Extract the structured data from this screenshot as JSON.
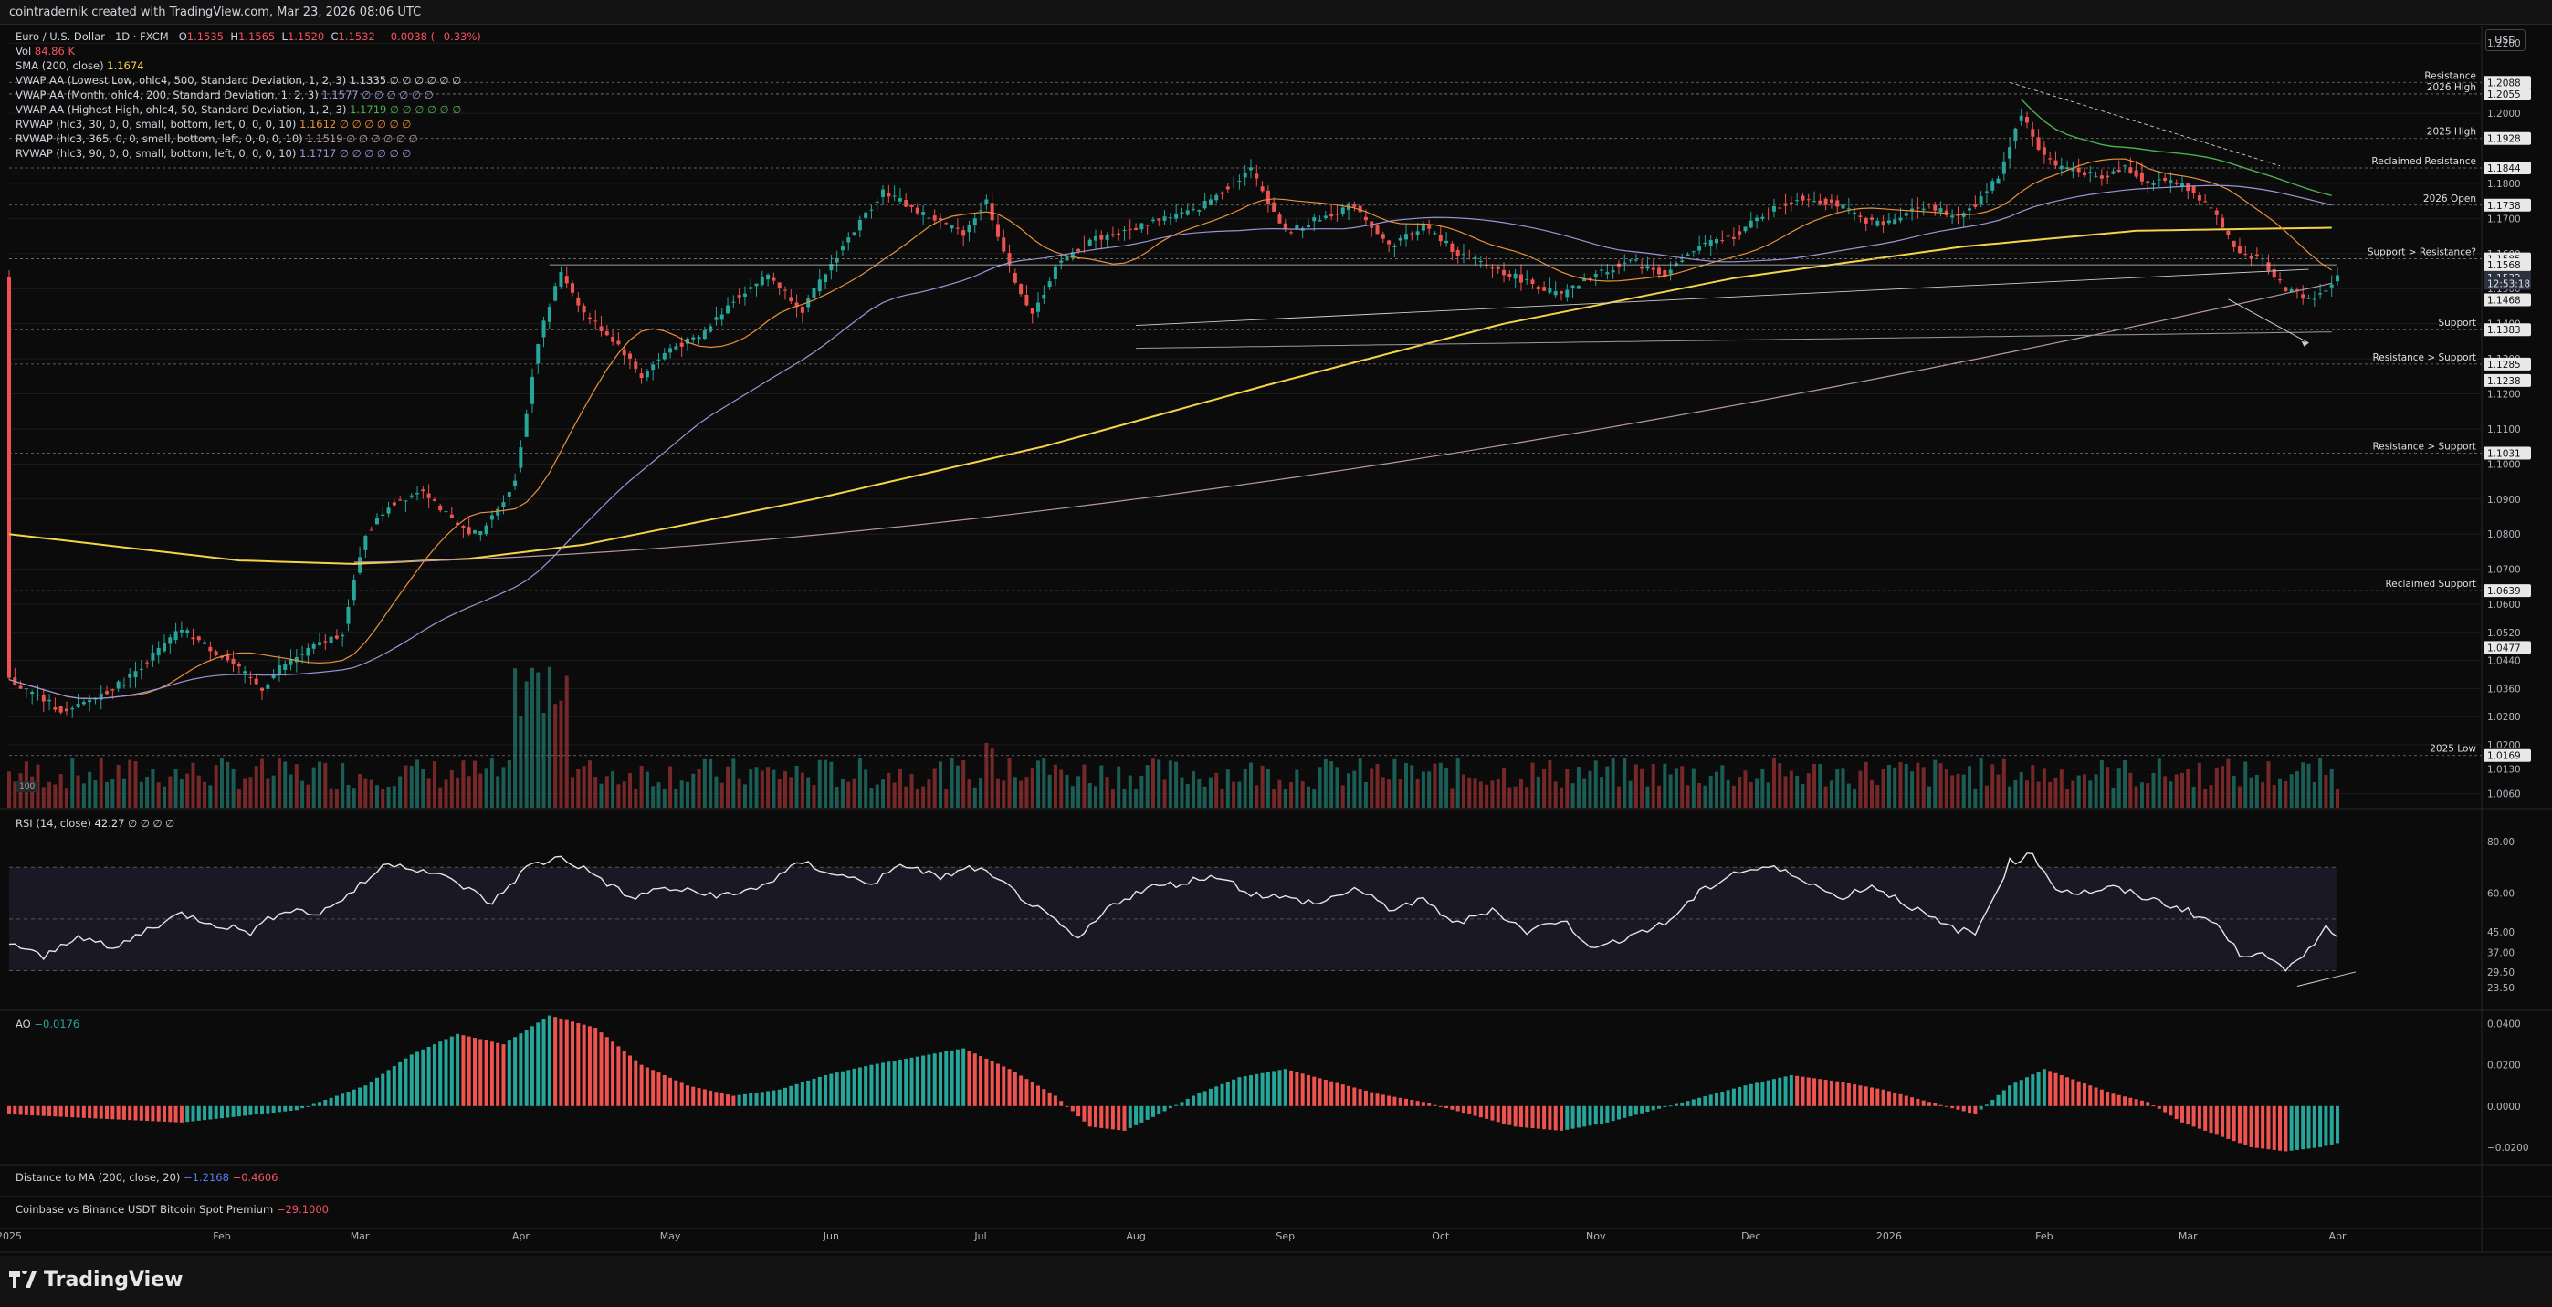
{
  "header": {
    "title": "cointradernik created with TradingView.com, Mar 23, 2026 08:06 UTC"
  },
  "legend": {
    "symbol": "Euro / U.S. Dollar · 1D · FXCM",
    "open_label": "O",
    "open": "1.1535",
    "high_label": "H",
    "high": "1.1565",
    "low_label": "L",
    "low": "1.1520",
    "close_label": "C",
    "close": "1.1532",
    "change": "−0.0038 (−0.33%)",
    "vol_label": "Vol",
    "vol": "84.86 K",
    "sma_label": "SMA (200, close)",
    "sma": "1.1674",
    "vwap1_label": "VWAP AA (Lowest Low, ohlc4, 500, Standard Deviation, 1, 2, 3)",
    "vwap1": "1.1335 ∅ ∅ ∅ ∅ ∅ ∅",
    "vwap2_label": "VWAP AA (Month, ohlc4, 200, Standard Deviation, 1, 2, 3)",
    "vwap2": "1.1577 ∅ ∅ ∅ ∅ ∅ ∅",
    "vwap3_label": "VWAP AA (Highest High, ohlc4, 50, Standard Deviation, 1, 2, 3)",
    "vwap3": "1.1719 ∅ ∅ ∅ ∅ ∅ ∅",
    "rvwap1_label": "RVWAP (hlc3, 30, 0, 0, small, bottom, left, 0, 0, 0, 10)",
    "rvwap1": "1.1612 ∅ ∅ ∅ ∅ ∅ ∅",
    "rvwap2_label": "RVWAP (hlc3, 365, 0, 0, small, bottom, left, 0, 0, 0, 10)",
    "rvwap2": "1.1519 ∅ ∅ ∅ ∅ ∅ ∅",
    "rvwap3_label": "RVWAP (hlc3, 90, 0, 0, small, bottom, left, 0, 0, 0, 10)",
    "rvwap3": "1.1717 ∅ ∅ ∅ ∅ ∅ ∅"
  },
  "currency": "USD",
  "vol_badge": "100",
  "panes": {
    "rsi_label": "RSI (14, close)",
    "rsi_value": "42.27",
    "rsi_extra": "∅ ∅ ∅ ∅",
    "ao_label": "AO",
    "ao_value": "−0.0176",
    "dist_label": "Distance to MA (200, close, 20)",
    "dist_v1": "−1.2168",
    "dist_v2": "−0.4606",
    "prem_label": "Coinbase vs Binance USDT Bitcoin Spot Premium",
    "prem_value": "−29.1000"
  },
  "footer": {
    "brand": "TradingView"
  },
  "colors": {
    "up": "#26a69a",
    "down": "#ef5350",
    "sma": "#f5d547",
    "orange": "#e8903a",
    "lavender": "#9c97d8",
    "pink": "#b798a8",
    "green": "#4caf50",
    "grid": "#1c1c1c"
  },
  "chart_data": {
    "type": "candlestick",
    "symbol": "EURUSD",
    "timeframe": "1D",
    "x_axis_labels": [
      "2025",
      "Feb",
      "Mar",
      "Apr",
      "May",
      "Jun",
      "Jul",
      "Aug",
      "Sep",
      "Oct",
      "Nov",
      "Dec",
      "2026",
      "Feb",
      "Mar",
      "Apr"
    ],
    "price_ticks": [
      "1.2200",
      "1.2000",
      "1.1800",
      "1.1700",
      "1.1600",
      "1.1500",
      "1.1400",
      "1.1300",
      "1.1200",
      "1.1100",
      "1.1000",
      "1.0900",
      "1.0800",
      "1.0700",
      "1.0600",
      "1.0520",
      "1.0440",
      "1.0360",
      "1.0280",
      "1.0200",
      "1.0130",
      "1.0060"
    ],
    "price_axis_marks": [
      "1.2088",
      "1.2055",
      "1.1928",
      "1.1844",
      "1.1738",
      "1.1585",
      "1.1568",
      "1.1532",
      "12:53:18",
      "1.1468",
      "1.1383",
      "1.1285",
      "1.1238",
      "1.1031",
      "1.0639",
      "1.0477",
      "1.0169"
    ],
    "levels": [
      {
        "label": "Resistance",
        "price": 1.2088
      },
      {
        "label": "2026 High",
        "price": 1.2055
      },
      {
        "label": "2025 High",
        "price": 1.1928
      },
      {
        "label": "Reclaimed Resistance",
        "price": 1.1844
      },
      {
        "label": "2026 Open",
        "price": 1.1738
      },
      {
        "label": "Support > Resistance?",
        "price": 1.1585
      },
      {
        "label": "Support",
        "price": 1.1383
      },
      {
        "label": "Resistance > Support",
        "price": 1.1285
      },
      {
        "label": "Resistance > Support",
        "price": 1.1031
      },
      {
        "label": "Reclaimed Support",
        "price": 1.0639
      },
      {
        "label": "2025 Low",
        "price": 1.0169
      }
    ],
    "rsi_ticks": [
      "80.00",
      "60.00",
      "45.00",
      "37.00",
      "29.50",
      "23.50"
    ],
    "ao_ticks": [
      "0.0400",
      "0.0200",
      "0.0000",
      "−0.0200"
    ],
    "close_path": [
      [
        0,
        1.0385
      ],
      [
        10,
        1.029
      ],
      [
        20,
        1.038
      ],
      [
        30,
        1.053
      ],
      [
        38,
        1.044
      ],
      [
        44,
        1.036
      ],
      [
        47,
        1.042
      ],
      [
        52,
        1.047
      ],
      [
        58,
        1.052
      ],
      [
        62,
        1.08
      ],
      [
        66,
        1.088
      ],
      [
        72,
        1.093
      ],
      [
        78,
        1.082
      ],
      [
        82,
        1.08
      ],
      [
        88,
        1.095
      ],
      [
        92,
        1.135
      ],
      [
        96,
        1.155
      ],
      [
        100,
        1.143
      ],
      [
        106,
        1.134
      ],
      [
        110,
        1.125
      ],
      [
        115,
        1.133
      ],
      [
        120,
        1.136
      ],
      [
        126,
        1.147
      ],
      [
        132,
        1.154
      ],
      [
        138,
        1.144
      ],
      [
        145,
        1.162
      ],
      [
        152,
        1.178
      ],
      [
        158,
        1.172
      ],
      [
        166,
        1.166
      ],
      [
        170,
        1.175
      ],
      [
        174,
        1.156
      ],
      [
        178,
        1.142
      ],
      [
        182,
        1.156
      ],
      [
        188,
        1.164
      ],
      [
        194,
        1.166
      ],
      [
        200,
        1.17
      ],
      [
        206,
        1.172
      ],
      [
        212,
        1.179
      ],
      [
        216,
        1.184
      ],
      [
        222,
        1.166
      ],
      [
        228,
        1.17
      ],
      [
        234,
        1.174
      ],
      [
        240,
        1.162
      ],
      [
        246,
        1.168
      ],
      [
        252,
        1.16
      ],
      [
        258,
        1.156
      ],
      [
        264,
        1.152
      ],
      [
        270,
        1.148
      ],
      [
        276,
        1.154
      ],
      [
        282,
        1.158
      ],
      [
        288,
        1.154
      ],
      [
        294,
        1.162
      ],
      [
        300,
        1.165
      ],
      [
        306,
        1.172
      ],
      [
        312,
        1.176
      ],
      [
        318,
        1.174
      ],
      [
        322,
        1.17
      ],
      [
        326,
        1.168
      ],
      [
        330,
        1.172
      ],
      [
        334,
        1.174
      ],
      [
        338,
        1.17
      ],
      [
        342,
        1.174
      ],
      [
        346,
        1.182
      ],
      [
        350,
        1.2
      ],
      [
        353,
        1.19
      ],
      [
        356,
        1.185
      ],
      [
        360,
        1.184
      ],
      [
        364,
        1.181
      ],
      [
        368,
        1.185
      ],
      [
        372,
        1.18
      ],
      [
        376,
        1.181
      ],
      [
        380,
        1.178
      ],
      [
        384,
        1.17
      ],
      [
        388,
        1.16
      ],
      [
        392,
        1.158
      ],
      [
        396,
        1.15
      ],
      [
        400,
        1.147
      ],
      [
        402,
        1.148
      ],
      [
        405,
        1.1532
      ]
    ],
    "sma200_path": [
      [
        0,
        1.08
      ],
      [
        40,
        1.0725
      ],
      [
        60,
        1.0715
      ],
      [
        80,
        1.073
      ],
      [
        100,
        1.077
      ],
      [
        140,
        1.09
      ],
      [
        180,
        1.105
      ],
      [
        220,
        1.123
      ],
      [
        260,
        1.14
      ],
      [
        300,
        1.153
      ],
      [
        340,
        1.162
      ],
      [
        370,
        1.1665
      ],
      [
        405,
        1.1674
      ]
    ],
    "rsi_path": [
      [
        0,
        41
      ],
      [
        6,
        35
      ],
      [
        12,
        44
      ],
      [
        18,
        38
      ],
      [
        24,
        46
      ],
      [
        30,
        52
      ],
      [
        36,
        48
      ],
      [
        42,
        45
      ],
      [
        48,
        54
      ],
      [
        54,
        52
      ],
      [
        60,
        61
      ],
      [
        66,
        72
      ],
      [
        72,
        69
      ],
      [
        78,
        64
      ],
      [
        84,
        56
      ],
      [
        90,
        70
      ],
      [
        96,
        74
      ],
      [
        102,
        67
      ],
      [
        108,
        58
      ],
      [
        114,
        62
      ],
      [
        120,
        60
      ],
      [
        126,
        59
      ],
      [
        132,
        64
      ],
      [
        138,
        72
      ],
      [
        144,
        67
      ],
      [
        150,
        64
      ],
      [
        156,
        71
      ],
      [
        162,
        66
      ],
      [
        168,
        70
      ],
      [
        174,
        62
      ],
      [
        180,
        52
      ],
      [
        186,
        42
      ],
      [
        192,
        56
      ],
      [
        198,
        62
      ],
      [
        204,
        64
      ],
      [
        210,
        67
      ],
      [
        216,
        60
      ],
      [
        222,
        58
      ],
      [
        228,
        56
      ],
      [
        234,
        62
      ],
      [
        240,
        54
      ],
      [
        246,
        57
      ],
      [
        252,
        48
      ],
      [
        258,
        54
      ],
      [
        264,
        45
      ],
      [
        270,
        50
      ],
      [
        276,
        38
      ],
      [
        282,
        44
      ],
      [
        288,
        48
      ],
      [
        294,
        60
      ],
      [
        300,
        68
      ],
      [
        306,
        70
      ],
      [
        312,
        66
      ],
      [
        318,
        58
      ],
      [
        324,
        63
      ],
      [
        330,
        56
      ],
      [
        336,
        48
      ],
      [
        342,
        44
      ],
      [
        348,
        72
      ],
      [
        352,
        75
      ],
      [
        356,
        62
      ],
      [
        360,
        60
      ],
      [
        366,
        62
      ],
      [
        372,
        58
      ],
      [
        378,
        54
      ],
      [
        384,
        48
      ],
      [
        388,
        36
      ],
      [
        392,
        38
      ],
      [
        396,
        29
      ],
      [
        400,
        38
      ],
      [
        403,
        48
      ],
      [
        405,
        42
      ]
    ],
    "ao_path": [
      [
        0,
        -0.004
      ],
      [
        30,
        -0.008
      ],
      [
        50,
        -0.002
      ],
      [
        62,
        0.01
      ],
      [
        70,
        0.025
      ],
      [
        78,
        0.035
      ],
      [
        86,
        0.03
      ],
      [
        94,
        0.044
      ],
      [
        102,
        0.038
      ],
      [
        110,
        0.02
      ],
      [
        118,
        0.01
      ],
      [
        126,
        0.005
      ],
      [
        134,
        0.008
      ],
      [
        142,
        0.015
      ],
      [
        150,
        0.02
      ],
      [
        158,
        0.024
      ],
      [
        166,
        0.028
      ],
      [
        174,
        0.018
      ],
      [
        182,
        0.005
      ],
      [
        188,
        -0.01
      ],
      [
        194,
        -0.012
      ],
      [
        200,
        -0.004
      ],
      [
        206,
        0.005
      ],
      [
        214,
        0.014
      ],
      [
        222,
        0.018
      ],
      [
        230,
        0.012
      ],
      [
        238,
        0.006
      ],
      [
        246,
        0.002
      ],
      [
        254,
        -0.004
      ],
      [
        262,
        -0.01
      ],
      [
        270,
        -0.012
      ],
      [
        278,
        -0.008
      ],
      [
        286,
        -0.002
      ],
      [
        294,
        0.004
      ],
      [
        302,
        0.01
      ],
      [
        310,
        0.015
      ],
      [
        318,
        0.012
      ],
      [
        326,
        0.008
      ],
      [
        334,
        0.002
      ],
      [
        342,
        -0.004
      ],
      [
        348,
        0.01
      ],
      [
        354,
        0.018
      ],
      [
        360,
        0.012
      ],
      [
        366,
        0.006
      ],
      [
        372,
        0.002
      ],
      [
        378,
        -0.008
      ],
      [
        384,
        -0.014
      ],
      [
        390,
        -0.02
      ],
      [
        396,
        -0.022
      ],
      [
        402,
        -0.02
      ],
      [
        405,
        -0.018
      ]
    ]
  }
}
